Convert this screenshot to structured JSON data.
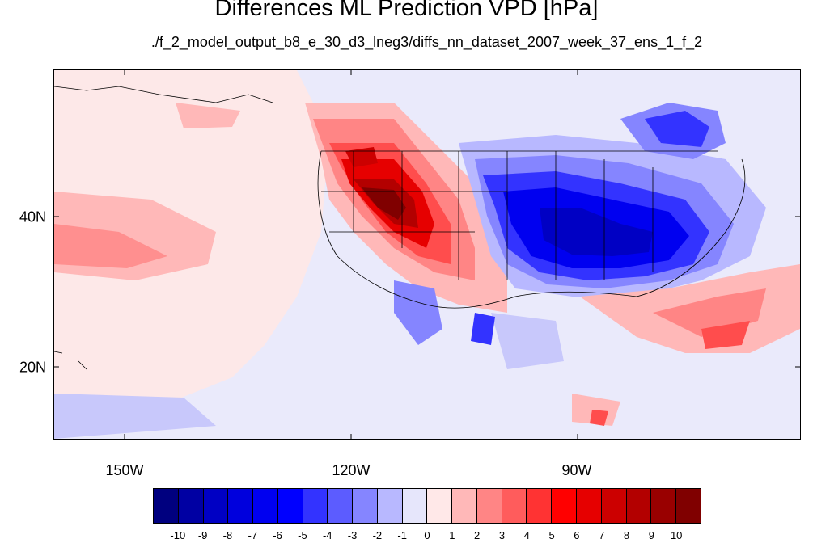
{
  "title": "Differences ML Prediction VPD [hPa]",
  "subtitle": "./f_2_model_output_b8_e_30_d3_lneg3/diffs_nn_dataset_2007_week_37_ens_1_f_2",
  "lon_labels": [
    "150W",
    "120W",
    "90W"
  ],
  "lat_labels": [
    "40N",
    "20N"
  ],
  "colorbar": {
    "labels": [
      "-10",
      "-9",
      "-8",
      "-7",
      "-6",
      "-5",
      "-4",
      "-3",
      "-2",
      "-1",
      "0",
      "1",
      "2",
      "3",
      "4",
      "5",
      "6",
      "7",
      "8",
      "9",
      "10"
    ],
    "colors": [
      "#00007f",
      "#0000a3",
      "#0000c4",
      "#0000dd",
      "#0000f0",
      "#0000ff",
      "#3333ff",
      "#5c5cff",
      "#8585ff",
      "#b8b8ff",
      "#e6e6fb",
      "#ffe8e8",
      "#ffb8b8",
      "#ff8585",
      "#ff5c5c",
      "#ff3333",
      "#ff0000",
      "#e60000",
      "#cc0000",
      "#b30000",
      "#990000",
      "#800000"
    ]
  },
  "map_data": {
    "lon_range": [
      -160,
      -58
    ],
    "lat_range": [
      10,
      59
    ],
    "projection": "equirectangular",
    "pattern": "positive anomalies (red) over the western US and Mexico; negative anomalies (blue) over the central and eastern US and Canada"
  }
}
